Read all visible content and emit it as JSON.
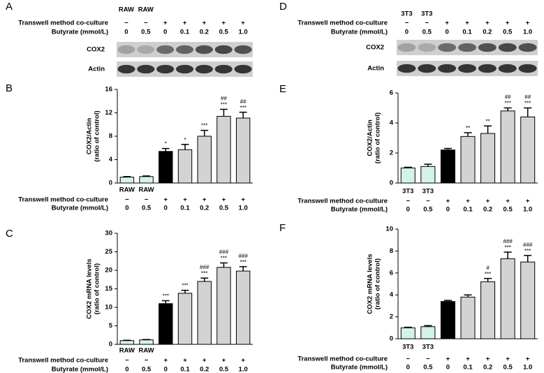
{
  "blots": [
    {
      "label": "A",
      "lane_labels": [
        "RAW",
        "RAW"
      ],
      "rows": [
        {
          "label": "Transwell method co-culture",
          "values": [
            "−",
            "−",
            "+",
            "+",
            "+",
            "+",
            "+"
          ]
        },
        {
          "label": "Butyrate (mmol/L)",
          "values": [
            "0",
            "0.5",
            "0",
            "0.1",
            "0.2",
            "0.5",
            "1.0"
          ]
        }
      ],
      "bands": [
        "COX2",
        "Actin"
      ]
    },
    {
      "label": "D",
      "lane_labels": [
        "3T3",
        "3T3"
      ],
      "rows": [
        {
          "label": "Transwell method co-culture",
          "values": [
            "−",
            "−",
            "+",
            "+",
            "+",
            "+",
            "+"
          ]
        },
        {
          "label": "Butyrate (mmol/L)",
          "values": [
            "0",
            "0.5",
            "0",
            "0.1",
            "0.2",
            "0.5",
            "1.0"
          ]
        }
      ],
      "bands": [
        "COX2",
        "Actin"
      ]
    }
  ],
  "chart_data": [
    {
      "type": "bar",
      "label": "B",
      "ylabel": [
        "COX2/Actin",
        "(ratio of control)"
      ],
      "categories": [
        "RAW",
        "RAW",
        null,
        null,
        null,
        null,
        null
      ],
      "values": [
        1.0,
        1.1,
        5.4,
        5.7,
        8.0,
        11.4,
        11.1
      ],
      "errors": [
        0.1,
        0.1,
        0.5,
        0.9,
        1.0,
        1.2,
        1.0
      ],
      "colors": [
        "#d4f2ec",
        "#d4f2ec",
        "#000000",
        "#d3d3d3",
        "#d3d3d3",
        "#d3d3d3",
        "#d3d3d3"
      ],
      "annotations": [
        [],
        [],
        [
          "*"
        ],
        [
          "*"
        ],
        [
          "***"
        ],
        [
          "##",
          "***"
        ],
        [
          "##",
          "***"
        ]
      ],
      "ylim": [
        0,
        16
      ],
      "yticks": [
        0,
        4,
        8,
        12,
        16
      ],
      "rows": [
        {
          "label": "Transwell method co-culture",
          "values": [
            "−",
            "−",
            "+",
            "+",
            "+",
            "+",
            "+"
          ]
        },
        {
          "label": "Butyrate (mmol/L)",
          "values": [
            "0",
            "0.5",
            "0",
            "0.1",
            "0.2",
            "0.5",
            "1.0"
          ]
        }
      ]
    },
    {
      "type": "bar",
      "label": "C",
      "ylabel": [
        "COX2 mRNA levels",
        "(ratio of control)"
      ],
      "categories": [
        "RAW",
        "RAW",
        null,
        null,
        null,
        null,
        null
      ],
      "values": [
        1.0,
        1.2,
        11.0,
        13.8,
        17.0,
        20.8,
        19.8
      ],
      "errors": [
        0.1,
        0.1,
        0.8,
        0.8,
        0.9,
        1.2,
        1.2
      ],
      "colors": [
        "#d4f2ec",
        "#d4f2ec",
        "#000000",
        "#d3d3d3",
        "#d3d3d3",
        "#d3d3d3",
        "#d3d3d3"
      ],
      "annotations": [
        [],
        [],
        [
          "***"
        ],
        [
          "***"
        ],
        [
          "###",
          "***"
        ],
        [
          "###",
          "***"
        ],
        [
          "###",
          "***"
        ]
      ],
      "ylim": [
        0,
        30
      ],
      "yticks": [
        0,
        5,
        10,
        15,
        20,
        25,
        30
      ],
      "rows": [
        {
          "label": "Transwell method co-culture",
          "values": [
            "−",
            "−",
            "+",
            "+",
            "+",
            "+",
            "+"
          ]
        },
        {
          "label": "Butyrate (mmol/L)",
          "values": [
            "0",
            "0.5",
            "0",
            "0.1",
            "0.2",
            "0.5",
            "1.0"
          ]
        }
      ]
    },
    {
      "type": "bar",
      "label": "E",
      "ylabel": [
        "COX2/Actin",
        "(ratio of control)"
      ],
      "categories": [
        "3T3",
        "3T3",
        null,
        null,
        null,
        null,
        null
      ],
      "values": [
        1.0,
        1.1,
        2.2,
        3.1,
        3.3,
        4.8,
        4.4
      ],
      "errors": [
        0.05,
        0.15,
        0.1,
        0.25,
        0.5,
        0.2,
        0.6
      ],
      "colors": [
        "#d4f2ec",
        "#d4f2ec",
        "#000000",
        "#d3d3d3",
        "#d3d3d3",
        "#d3d3d3",
        "#d3d3d3"
      ],
      "annotations": [
        [],
        [],
        [],
        [
          "**"
        ],
        [
          "**"
        ],
        [
          "##",
          "***"
        ],
        [
          "##",
          "***"
        ]
      ],
      "ylim": [
        0,
        6
      ],
      "yticks": [
        0,
        2,
        4,
        6
      ],
      "rows": [
        {
          "label": "Transwell method co-culture",
          "values": [
            "−",
            "−",
            "+",
            "+",
            "+",
            "+",
            "+"
          ]
        },
        {
          "label": "Butyrate (mmol/L)",
          "values": [
            "0",
            "0.5",
            "0",
            "0.1",
            "0.2",
            "0.5",
            "1.0"
          ]
        }
      ]
    },
    {
      "type": "bar",
      "label": "F",
      "ylabel": [
        "COX2 mRNA levels",
        "(ratio of control)"
      ],
      "categories": [
        "3T3",
        "3T3",
        null,
        null,
        null,
        null,
        null
      ],
      "values": [
        1.0,
        1.1,
        3.4,
        3.8,
        5.2,
        7.3,
        7.0
      ],
      "errors": [
        0.05,
        0.1,
        0.1,
        0.2,
        0.3,
        0.6,
        0.6
      ],
      "colors": [
        "#d4f2ec",
        "#d4f2ec",
        "#000000",
        "#d3d3d3",
        "#d3d3d3",
        "#d3d3d3",
        "#d3d3d3"
      ],
      "annotations": [
        [],
        [],
        [],
        [],
        [
          "#",
          "***"
        ],
        [
          "###",
          "***"
        ],
        [
          "###",
          "***"
        ]
      ],
      "ylim": [
        0,
        10
      ],
      "yticks": [
        0,
        2,
        4,
        6,
        8,
        10
      ],
      "rows": [
        {
          "label": "Transwell method co-culture",
          "values": [
            "−",
            "−",
            "+",
            "+",
            "+",
            "+",
            "+"
          ]
        },
        {
          "label": "Butyrate (mmol/L)",
          "values": [
            "0",
            "0.5",
            "0",
            "0.1",
            "0.2",
            "0.5",
            "1.0"
          ]
        }
      ]
    }
  ]
}
